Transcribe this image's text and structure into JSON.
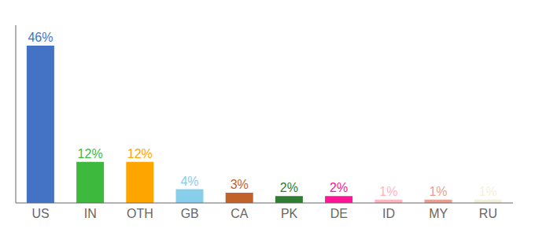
{
  "chart_data": {
    "type": "bar",
    "categories": [
      "US",
      "IN",
      "OTH",
      "GB",
      "CA",
      "PK",
      "DE",
      "ID",
      "MY",
      "RU"
    ],
    "values": [
      46,
      12,
      12,
      4,
      3,
      2,
      2,
      1,
      1,
      1
    ],
    "value_labels": [
      "46%",
      "12%",
      "12%",
      "4%",
      "3%",
      "2%",
      "2%",
      "1%",
      "1%",
      "1%"
    ],
    "colors": [
      "#4472c4",
      "#3dba3d",
      "#ffa500",
      "#87ceeb",
      "#c0622a",
      "#2e7d32",
      "#ff1493",
      "#ffb6c1",
      "#e8a090",
      "#f5f0dc"
    ],
    "ylim": [
      0,
      52
    ],
    "grid": false,
    "data_labels": true,
    "tick_labels": "x"
  }
}
